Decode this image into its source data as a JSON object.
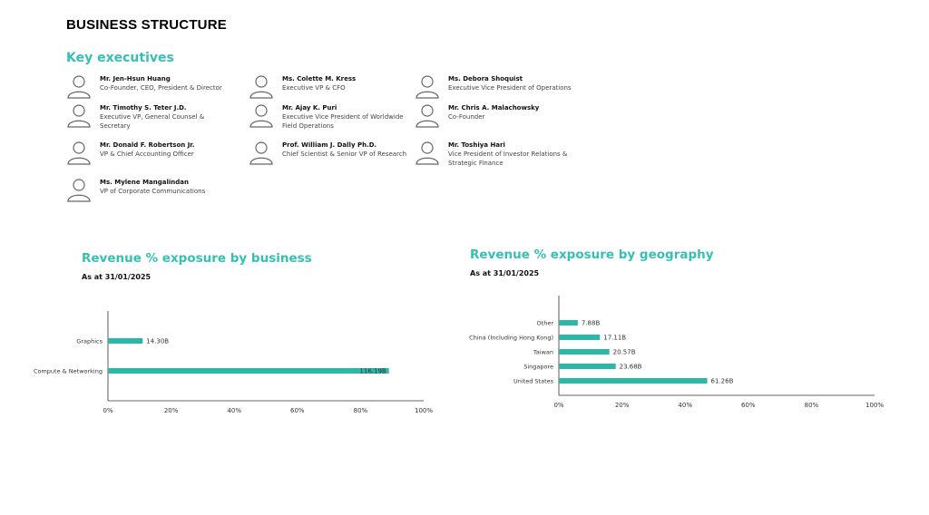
{
  "page_title": "BUSINESS STRUCTURE",
  "section_title": "Key executives",
  "executives": [
    {
      "name": "Mr. Jen-Hsun  Huang",
      "role": "Co-Founder, CEO, President & Director"
    },
    {
      "name": "Ms. Colette M. Kress",
      "role": "Executive VP & CFO"
    },
    {
      "name": "Ms. Debora  Shoquist",
      "role": "Executive Vice President of Operations"
    },
    {
      "name": "Mr. Timothy S. Teter J.D.",
      "role": "Executive VP, General Counsel & Secretary"
    },
    {
      "name": "Mr. Ajay K. Puri",
      "role": "Executive Vice President of Worldwide Field Operations"
    },
    {
      "name": "Mr. Chris A. Malachowsky",
      "role": "Co-Founder"
    },
    {
      "name": "Mr. Donald F. Robertson Jr.",
      "role": "VP & Chief Accounting Officer"
    },
    {
      "name": "Prof. William J. Dally Ph.D.",
      "role": "Chief Scientist & Senior VP of Research"
    },
    {
      "name": "Mr. Toshiya  Hari",
      "role": "Vice President of Investor Relations & Strategic Finance"
    },
    {
      "name": "Ms. Mylene  Mangalindan",
      "role": "VP of Corporate Communications"
    }
  ],
  "colors": {
    "accent": "#35bfb5",
    "bar": "#2bb7aa",
    "axis": "#333333"
  },
  "chart_data": [
    {
      "type": "bar",
      "orientation": "horizontal",
      "title": "Revenue % exposure by business",
      "subtitle": "As at 31/01/2025",
      "categories": [
        "Graphics",
        "Compute & Networking"
      ],
      "values": [
        11,
        89
      ],
      "data_labels": [
        "14.30B",
        "116.19B"
      ],
      "xlim": [
        0,
        100
      ],
      "xticks": [
        "0%",
        "20%",
        "40%",
        "60%",
        "80%",
        "100%"
      ],
      "grid": false
    },
    {
      "type": "bar",
      "orientation": "horizontal",
      "title": "Revenue % exposure by geography",
      "subtitle": "As at 31/01/2025",
      "categories": [
        "Other",
        "China (Including Hong Kong)",
        "Taiwan",
        "Singapore",
        "United States"
      ],
      "values": [
        6,
        13,
        16,
        18,
        47
      ],
      "data_labels": [
        "7.88B",
        "17.11B",
        "20.57B",
        "23.68B",
        "61.26B"
      ],
      "xlim": [
        0,
        100
      ],
      "xticks": [
        "0%",
        "20%",
        "40%",
        "60%",
        "80%",
        "100%"
      ],
      "grid": false
    }
  ]
}
